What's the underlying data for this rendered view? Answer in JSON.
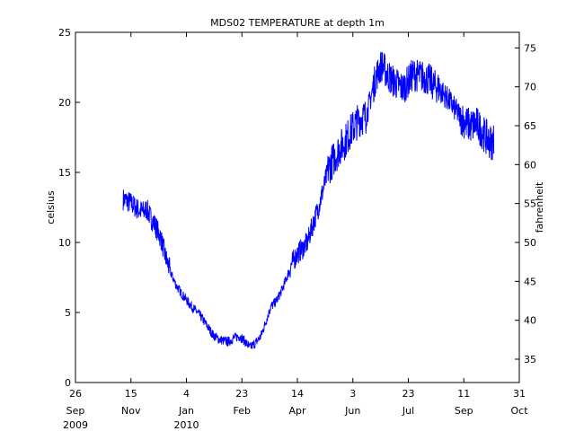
{
  "chart_data": {
    "type": "line",
    "title": "MDS02 TEMPERATURE at depth 1m",
    "ylabel": "celsius",
    "ylabel_right": "fahrenheit",
    "xlabel": "",
    "xlim": [
      "2009-09-26",
      "2010-10-31"
    ],
    "ylim": [
      0,
      25
    ],
    "ylim_right_f": [
      32,
      77
    ],
    "grid": false,
    "legend": "none",
    "line_color": "#0000ff",
    "x_ticks": [
      {
        "date": "2009-09-26",
        "day": "26",
        "month": "Sep",
        "year": "2009"
      },
      {
        "date": "2009-11-15",
        "day": "15",
        "month": "Nov",
        "year": ""
      },
      {
        "date": "2010-01-04",
        "day": "4",
        "month": "Jan",
        "year": "2010"
      },
      {
        "date": "2010-02-23",
        "day": "23",
        "month": "Feb",
        "year": ""
      },
      {
        "date": "2010-04-14",
        "day": "14",
        "month": "Apr",
        "year": ""
      },
      {
        "date": "2010-06-03",
        "day": "3",
        "month": "Jun",
        "year": ""
      },
      {
        "date": "2010-07-23",
        "day": "23",
        "month": "Jul",
        "year": ""
      },
      {
        "date": "2010-09-11",
        "day": "11",
        "month": "Sep",
        "year": ""
      },
      {
        "date": "2010-10-31",
        "day": "31",
        "month": "Oct",
        "year": ""
      }
    ],
    "y_ticks": [
      "0",
      "5",
      "10",
      "15",
      "20",
      "25"
    ],
    "y_ticks_right": [
      "35",
      "40",
      "45",
      "50",
      "55",
      "60",
      "65",
      "70",
      "75"
    ],
    "series": [
      {
        "name": "",
        "x": [
          "2009-11-08",
          "2009-11-13",
          "2009-11-18",
          "2009-11-22",
          "2009-11-27",
          "2009-11-29",
          "2009-12-02",
          "2009-12-07",
          "2009-12-12",
          "2009-12-16",
          "2009-12-21",
          "2009-12-26",
          "2009-12-31",
          "2010-01-04",
          "2010-01-09",
          "2010-01-14",
          "2010-01-18",
          "2010-01-23",
          "2010-01-28",
          "2010-02-02",
          "2010-02-06",
          "2010-02-11",
          "2010-02-16",
          "2010-02-21",
          "2010-02-25",
          "2010-03-02",
          "2010-03-07",
          "2010-03-12",
          "2010-03-16",
          "2010-03-21",
          "2010-03-26",
          "2010-03-31",
          "2010-04-04",
          "2010-04-09",
          "2010-04-14",
          "2010-04-19",
          "2010-04-23",
          "2010-04-28",
          "2010-05-03",
          "2010-05-08",
          "2010-05-12",
          "2010-05-17",
          "2010-05-22",
          "2010-05-27",
          "2010-05-31",
          "2010-06-05",
          "2010-06-10",
          "2010-06-15",
          "2010-06-19",
          "2010-06-24",
          "2010-06-29",
          "2010-07-04",
          "2010-07-08",
          "2010-07-13",
          "2010-07-18",
          "2010-07-23",
          "2010-07-27",
          "2010-08-01",
          "2010-08-06",
          "2010-08-11",
          "2010-08-15",
          "2010-08-20",
          "2010-08-25",
          "2010-08-30",
          "2010-09-03",
          "2010-09-08",
          "2010-09-13",
          "2010-09-18",
          "2010-09-22",
          "2010-09-27",
          "2010-10-01",
          "2010-10-06",
          "2010-10-08"
        ],
        "y": [
          13.1,
          12.9,
          12.6,
          12.3,
          12.2,
          12.4,
          11.9,
          11.2,
          10.3,
          9.0,
          7.8,
          6.9,
          6.3,
          5.9,
          5.4,
          5.0,
          4.6,
          4.0,
          3.4,
          3.1,
          3.0,
          2.9,
          3.2,
          3.3,
          3.0,
          2.5,
          2.8,
          3.3,
          4.2,
          5.4,
          5.8,
          6.6,
          7.4,
          8.5,
          9.2,
          9.6,
          10.0,
          11.3,
          12.5,
          14.0,
          15.3,
          16.0,
          16.7,
          17.2,
          17.8,
          18.4,
          18.9,
          19.0,
          20.3,
          21.9,
          22.7,
          22.0,
          21.6,
          21.3,
          21.0,
          21.5,
          22.0,
          21.9,
          21.8,
          21.6,
          21.2,
          21.0,
          20.5,
          20.0,
          19.5,
          19.0,
          18.5,
          18.3,
          18.5,
          18.0,
          17.5,
          17.1,
          17.3
        ]
      }
    ]
  }
}
